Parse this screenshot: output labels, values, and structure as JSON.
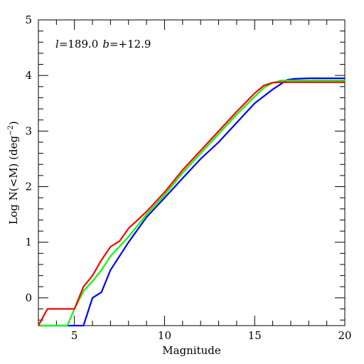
{
  "chart_data": {
    "type": "line",
    "xlabel": "Magnitude",
    "ylabel_main": "Log N(<M) (deg",
    "ylabel_exp": "−2",
    "ylabel_close": ")",
    "xlim": [
      3,
      20
    ],
    "ylim": [
      -0.5,
      5
    ],
    "x_major_ticks": [
      5,
      10,
      15,
      20
    ],
    "x_tick_labels": [
      "5",
      "10",
      "15",
      "20"
    ],
    "y_major_ticks": [
      0,
      1,
      2,
      3,
      4,
      5
    ],
    "y_tick_labels": [
      "0",
      "1",
      "2",
      "3",
      "4",
      "5"
    ],
    "annotation": {
      "l_sym": "l",
      "l_val": "=189.0",
      "b_sym": "b",
      "b_val": "=+12.9"
    },
    "grid": false,
    "legend": "none",
    "series": [
      {
        "color": "#0000ff",
        "x": [
          3.0,
          5.5,
          6.0,
          6.5,
          7.0,
          8.0,
          9.0,
          10.0,
          11.0,
          12.0,
          13.0,
          14.0,
          15.0,
          16.0,
          16.8,
          17.2,
          18.0,
          20.0
        ],
        "y": [
          -0.5,
          -0.5,
          0.0,
          0.1,
          0.5,
          1.0,
          1.45,
          1.8,
          2.15,
          2.5,
          2.8,
          3.15,
          3.5,
          3.75,
          3.92,
          3.94,
          3.95,
          3.95
        ]
      },
      {
        "color": "#00ff00",
        "x": [
          3.0,
          4.6,
          5.0,
          5.5,
          6.0,
          6.5,
          7.0,
          8.0,
          9.0,
          10.0,
          11.0,
          12.0,
          13.0,
          14.0,
          15.0,
          15.5,
          16.0,
          16.5,
          17.0,
          20.0
        ],
        "y": [
          -0.5,
          -0.5,
          -0.2,
          0.12,
          0.3,
          0.5,
          0.75,
          1.1,
          1.5,
          1.85,
          2.25,
          2.6,
          2.95,
          3.3,
          3.62,
          3.78,
          3.87,
          3.91,
          3.91,
          3.91
        ]
      },
      {
        "color": "#ff0000",
        "x": [
          3.0,
          3.5,
          5.0,
          5.5,
          6.0,
          6.5,
          7.0,
          7.5,
          8.0,
          9.0,
          10.0,
          11.0,
          12.0,
          13.0,
          14.0,
          15.0,
          15.5,
          16.0,
          16.5,
          17.0,
          20.0
        ],
        "y": [
          -0.5,
          -0.2,
          -0.2,
          0.2,
          0.4,
          0.68,
          0.92,
          1.02,
          1.25,
          1.55,
          1.9,
          2.3,
          2.65,
          3.0,
          3.35,
          3.68,
          3.82,
          3.87,
          3.88,
          3.88,
          3.88
        ]
      }
    ]
  }
}
